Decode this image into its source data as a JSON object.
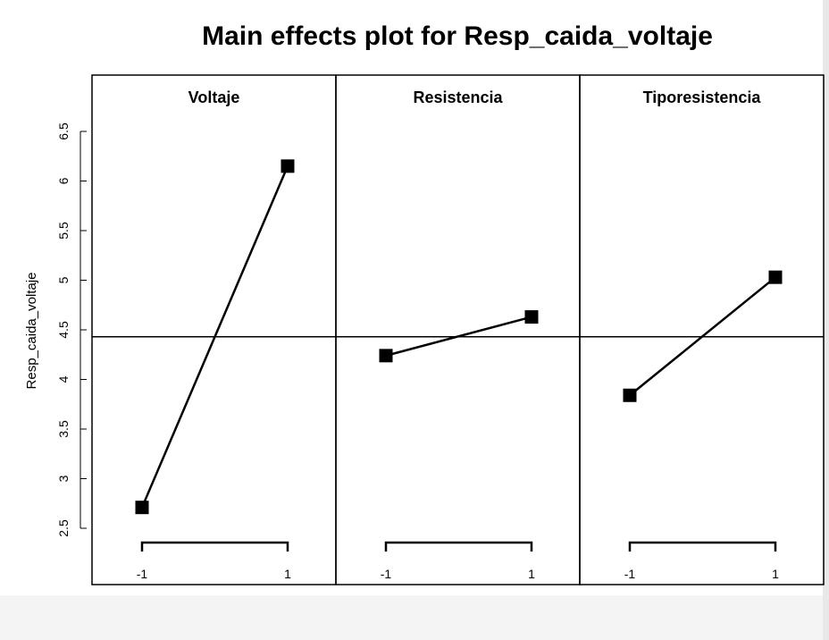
{
  "chart_data": {
    "type": "line",
    "title": "Main effects plot for Resp_caida_voltaje",
    "ylabel": "Resp_caida_voltaje",
    "ylim": [
      2.5,
      6.5
    ],
    "yticks": [
      "2.5",
      "3",
      "3.5",
      "4",
      "4.5",
      "5",
      "5.5",
      "6",
      "6.5"
    ],
    "ytick_values": [
      2.5,
      3,
      3.5,
      4,
      4.5,
      5,
      5.5,
      6,
      6.5
    ],
    "grand_mean": 4.43,
    "panels": [
      {
        "name": "Voltaje",
        "levels": [
          "-1",
          "1"
        ],
        "values": [
          2.71,
          6.15
        ]
      },
      {
        "name": "Resistencia",
        "levels": [
          "-1",
          "1"
        ],
        "values": [
          4.24,
          4.63
        ]
      },
      {
        "name": "Tiporesistencia",
        "levels": [
          "-1",
          "1"
        ],
        "values": [
          3.84,
          5.03
        ]
      }
    ]
  }
}
